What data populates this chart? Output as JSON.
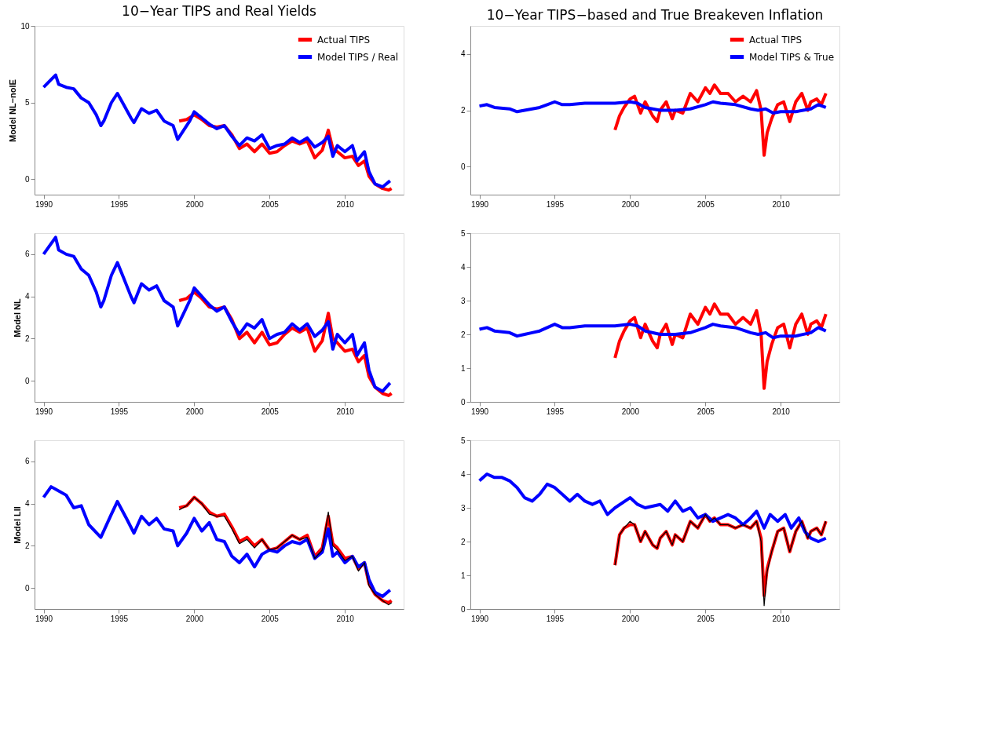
{
  "chart_data": [
    {
      "type": "line",
      "title": "10−Year TIPS and Real Yields",
      "ylabel": "Model NL−noIE",
      "xlim": [
        1989.4,
        2013.9
      ],
      "xticks": [
        1990,
        1995,
        2000,
        2005,
        2010
      ],
      "ylim": [
        -1,
        10
      ],
      "yticks": [
        0,
        5,
        10
      ],
      "grid": false,
      "legend": "top right",
      "series": [
        {
          "name": "Actual TIPS",
          "color": "#ff0000",
          "x": [
            1999,
            1999.5,
            2000,
            2000.5,
            2001,
            2001.5,
            2002,
            2002.5,
            2003,
            2003.5,
            2004,
            2004.5,
            2005,
            2005.5,
            2006,
            2006.5,
            2007,
            2007.5,
            2008,
            2008.5,
            2008.9,
            2009.2,
            2009.5,
            2010,
            2010.5,
            2010.9,
            2011.3,
            2011.6,
            2012,
            2012.5,
            2012.9,
            2013.1
          ],
          "values": [
            3.8,
            3.9,
            4.2,
            3.9,
            3.5,
            3.4,
            3.5,
            2.9,
            2.0,
            2.3,
            1.8,
            2.3,
            1.7,
            1.8,
            2.2,
            2.5,
            2.3,
            2.5,
            1.4,
            1.9,
            3.2,
            2.0,
            1.8,
            1.4,
            1.5,
            0.9,
            1.2,
            0.2,
            -0.3,
            -0.6,
            -0.7,
            -0.6
          ]
        },
        {
          "name": "Model TIPS / Real",
          "color": "#0000ff",
          "x": [
            1990,
            1990.5,
            1990.8,
            1991,
            1991.5,
            1992,
            1992.5,
            1993,
            1993.5,
            1993.8,
            1994,
            1994.5,
            1994.9,
            1995.3,
            1995.8,
            1996,
            1996.5,
            1997,
            1997.5,
            1998,
            1998.6,
            1998.9,
            1999.3,
            1999.7,
            2000,
            2000.5,
            2001,
            2001.5,
            2002,
            2002.5,
            2003,
            2003.5,
            2004,
            2004.5,
            2005,
            2005.5,
            2006,
            2006.5,
            2007,
            2007.5,
            2008,
            2008.5,
            2008.9,
            2009.2,
            2009.5,
            2010,
            2010.5,
            2010.8,
            2011.3,
            2011.6,
            2012,
            2012.5,
            2013
          ],
          "values": [
            6.0,
            6.5,
            6.8,
            6.2,
            6.0,
            5.9,
            5.3,
            5.0,
            4.2,
            3.5,
            3.8,
            5.0,
            5.6,
            4.9,
            4.0,
            3.7,
            4.6,
            4.3,
            4.5,
            3.8,
            3.5,
            2.6,
            3.2,
            3.8,
            4.4,
            4.0,
            3.6,
            3.3,
            3.5,
            2.8,
            2.2,
            2.7,
            2.5,
            2.9,
            2.0,
            2.2,
            2.3,
            2.7,
            2.4,
            2.7,
            2.1,
            2.4,
            2.8,
            1.5,
            2.2,
            1.8,
            2.2,
            1.2,
            1.8,
            0.5,
            -0.3,
            -0.5,
            -0.1
          ]
        }
      ]
    },
    {
      "type": "line",
      "title": "10−Year TIPS−based and True Breakeven Inflation",
      "xlim": [
        1989.4,
        2013.9
      ],
      "xticks": [
        1990,
        1995,
        2000,
        2005,
        2010
      ],
      "ylim": [
        -1,
        5
      ],
      "yticks": [
        0,
        2,
        4
      ],
      "grid": false,
      "legend": "top right",
      "series": [
        {
          "name": "Actual TIPS",
          "color": "#ff0000",
          "x": [
            1999,
            1999.3,
            1999.6,
            2000,
            2000.3,
            2000.7,
            2001,
            2001.5,
            2001.8,
            2002,
            2002.4,
            2002.8,
            2003,
            2003.5,
            2004,
            2004.5,
            2005,
            2005.3,
            2005.6,
            2006,
            2006.5,
            2007,
            2007.5,
            2008,
            2008.4,
            2008.7,
            2008.9,
            2009.1,
            2009.4,
            2009.8,
            2010.2,
            2010.6,
            2011,
            2011.4,
            2011.8,
            2012,
            2012.4,
            2012.7,
            2013
          ],
          "values": [
            1.3,
            1.8,
            2.1,
            2.4,
            2.5,
            1.9,
            2.3,
            1.8,
            1.6,
            2.0,
            2.3,
            1.7,
            2.0,
            1.9,
            2.6,
            2.3,
            2.8,
            2.6,
            2.9,
            2.6,
            2.6,
            2.3,
            2.5,
            2.3,
            2.7,
            2.0,
            0.4,
            1.2,
            1.7,
            2.2,
            2.3,
            1.6,
            2.3,
            2.6,
            2.0,
            2.3,
            2.4,
            2.2,
            2.6
          ]
        },
        {
          "name": "Model TIPS & True",
          "color": "#0000ff",
          "x": [
            1990,
            1990.5,
            1991,
            1992,
            1992.5,
            1993,
            1993.5,
            1994,
            1994.5,
            1995,
            1995.5,
            1996,
            1997,
            1998,
            1999,
            2000,
            2000.5,
            2001,
            2002,
            2003,
            2004,
            2005,
            2005.5,
            2006,
            2007,
            2008,
            2008.5,
            2009,
            2009.5,
            2010,
            2011,
            2012,
            2012.5,
            2013
          ],
          "values": [
            2.15,
            2.2,
            2.1,
            2.05,
            1.95,
            2.0,
            2.05,
            2.1,
            2.2,
            2.3,
            2.2,
            2.2,
            2.25,
            2.25,
            2.25,
            2.3,
            2.25,
            2.1,
            2.0,
            2.0,
            2.05,
            2.2,
            2.3,
            2.25,
            2.2,
            2.05,
            2.0,
            2.05,
            1.9,
            1.95,
            1.95,
            2.05,
            2.2,
            2.1
          ]
        }
      ]
    },
    {
      "type": "line",
      "ylabel": "Model NL",
      "xlim": [
        1989.4,
        2013.9
      ],
      "xticks": [
        1990,
        1995,
        2000,
        2005,
        2010
      ],
      "ylim": [
        -1,
        7
      ],
      "yticks": [
        0,
        2,
        4,
        6
      ],
      "grid": false,
      "series": [
        {
          "color": "#ff0000",
          "x": [
            1999,
            1999.5,
            2000,
            2000.5,
            2001,
            2001.5,
            2002,
            2002.5,
            2003,
            2003.5,
            2004,
            2004.5,
            2005,
            2005.5,
            2006,
            2006.5,
            2007,
            2007.5,
            2008,
            2008.5,
            2008.9,
            2009.2,
            2009.5,
            2010,
            2010.5,
            2010.9,
            2011.3,
            2011.6,
            2012,
            2012.5,
            2012.9,
            2013.1
          ],
          "values": [
            3.8,
            3.9,
            4.2,
            3.9,
            3.5,
            3.4,
            3.5,
            2.9,
            2.0,
            2.3,
            1.8,
            2.3,
            1.7,
            1.8,
            2.2,
            2.5,
            2.3,
            2.5,
            1.4,
            1.9,
            3.2,
            2.0,
            1.8,
            1.4,
            1.5,
            0.9,
            1.2,
            0.2,
            -0.3,
            -0.6,
            -0.7,
            -0.6
          ]
        },
        {
          "color": "#0000ff",
          "x": [
            1990,
            1990.5,
            1990.8,
            1991,
            1991.5,
            1992,
            1992.5,
            1993,
            1993.5,
            1993.8,
            1994,
            1994.5,
            1994.9,
            1995.3,
            1995.8,
            1996,
            1996.5,
            1997,
            1997.5,
            1998,
            1998.6,
            1998.9,
            1999.3,
            1999.7,
            2000,
            2000.5,
            2001,
            2001.5,
            2002,
            2002.5,
            2003,
            2003.5,
            2004,
            2004.5,
            2005,
            2005.5,
            2006,
            2006.5,
            2007,
            2007.5,
            2008,
            2008.5,
            2008.9,
            2009.2,
            2009.5,
            2010,
            2010.5,
            2010.8,
            2011.3,
            2011.6,
            2012,
            2012.5,
            2013
          ],
          "values": [
            6.0,
            6.5,
            6.8,
            6.2,
            6.0,
            5.9,
            5.3,
            5.0,
            4.2,
            3.5,
            3.8,
            5.0,
            5.6,
            4.9,
            4.0,
            3.7,
            4.6,
            4.3,
            4.5,
            3.8,
            3.5,
            2.6,
            3.2,
            3.8,
            4.4,
            4.0,
            3.6,
            3.3,
            3.5,
            2.8,
            2.2,
            2.7,
            2.5,
            2.9,
            2.0,
            2.2,
            2.3,
            2.7,
            2.4,
            2.7,
            2.1,
            2.4,
            2.8,
            1.5,
            2.2,
            1.8,
            2.2,
            1.2,
            1.8,
            0.5,
            -0.3,
            -0.5,
            -0.1
          ]
        }
      ]
    },
    {
      "type": "line",
      "xlim": [
        1989.4,
        2013.9
      ],
      "xticks": [
        1990,
        1995,
        2000,
        2005,
        2010
      ],
      "ylim": [
        0,
        5
      ],
      "yticks": [
        0,
        1,
        2,
        3,
        4,
        5
      ],
      "grid": false,
      "series": [
        {
          "color": "#ff0000",
          "x": [
            1999,
            1999.3,
            1999.6,
            2000,
            2000.3,
            2000.7,
            2001,
            2001.5,
            2001.8,
            2002,
            2002.4,
            2002.8,
            2003,
            2003.5,
            2004,
            2004.5,
            2005,
            2005.3,
            2005.6,
            2006,
            2006.5,
            2007,
            2007.5,
            2008,
            2008.4,
            2008.7,
            2008.9,
            2009.1,
            2009.4,
            2009.8,
            2010.2,
            2010.6,
            2011,
            2011.4,
            2011.8,
            2012,
            2012.4,
            2012.7,
            2013
          ],
          "values": [
            1.3,
            1.8,
            2.1,
            2.4,
            2.5,
            1.9,
            2.3,
            1.8,
            1.6,
            2.0,
            2.3,
            1.7,
            2.0,
            1.9,
            2.6,
            2.3,
            2.8,
            2.6,
            2.9,
            2.6,
            2.6,
            2.3,
            2.5,
            2.3,
            2.7,
            2.0,
            0.4,
            1.2,
            1.7,
            2.2,
            2.3,
            1.6,
            2.3,
            2.6,
            2.0,
            2.3,
            2.4,
            2.2,
            2.6
          ]
        },
        {
          "color": "#0000ff",
          "x": [
            1990,
            1990.5,
            1991,
            1992,
            1992.5,
            1993,
            1993.5,
            1994,
            1994.5,
            1995,
            1995.5,
            1996,
            1997,
            1998,
            1999,
            2000,
            2000.5,
            2001,
            2002,
            2003,
            2004,
            2005,
            2005.5,
            2006,
            2007,
            2008,
            2008.5,
            2009,
            2009.5,
            2010,
            2011,
            2012,
            2012.5,
            2013
          ],
          "values": [
            2.15,
            2.2,
            2.1,
            2.05,
            1.95,
            2.0,
            2.05,
            2.1,
            2.2,
            2.3,
            2.2,
            2.2,
            2.25,
            2.25,
            2.25,
            2.3,
            2.25,
            2.1,
            2.0,
            2.0,
            2.05,
            2.2,
            2.3,
            2.25,
            2.2,
            2.05,
            2.0,
            2.05,
            1.9,
            1.95,
            1.95,
            2.05,
            2.2,
            2.1
          ]
        }
      ]
    },
    {
      "type": "line",
      "ylabel": "Model LII",
      "xlim": [
        1989.4,
        2013.9
      ],
      "xticks": [
        1990,
        1995,
        2000,
        2005,
        2010
      ],
      "ylim": [
        -1,
        7
      ],
      "yticks": [
        0,
        2,
        4,
        6
      ],
      "grid": false,
      "series": [
        {
          "color": "#ff0000",
          "x": [
            1999,
            1999.5,
            2000,
            2000.5,
            2001,
            2001.5,
            2002,
            2002.5,
            2003,
            2003.5,
            2004,
            2004.5,
            2005,
            2005.5,
            2006,
            2006.5,
            2007,
            2007.5,
            2008,
            2008.5,
            2008.9,
            2009.2,
            2009.5,
            2010,
            2010.5,
            2010.9,
            2011.3,
            2011.6,
            2012,
            2012.5,
            2012.9,
            2013.1
          ],
          "values": [
            3.8,
            3.9,
            4.3,
            4.0,
            3.6,
            3.4,
            3.5,
            2.9,
            2.2,
            2.4,
            2.0,
            2.3,
            1.8,
            1.9,
            2.2,
            2.5,
            2.3,
            2.5,
            1.5,
            1.9,
            3.4,
            2.1,
            1.9,
            1.4,
            1.5,
            0.9,
            1.2,
            0.2,
            -0.3,
            -0.6,
            -0.7,
            -0.6
          ]
        },
        {
          "color": "#0000ff",
          "x": [
            1990,
            1990.5,
            1991,
            1991.5,
            1992,
            1992.5,
            1993,
            1993.8,
            1994.5,
            1994.9,
            1995.5,
            1996,
            1996.5,
            1997,
            1997.5,
            1998,
            1998.6,
            1998.9,
            1999.5,
            2000,
            2000.5,
            2001,
            2001.5,
            2002,
            2002.5,
            2003,
            2003.5,
            2004,
            2004.5,
            2005,
            2005.5,
            2006,
            2006.5,
            2007,
            2007.5,
            2008,
            2008.5,
            2008.9,
            2009.2,
            2009.5,
            2010,
            2010.5,
            2010.9,
            2011.3,
            2011.6,
            2012,
            2012.5,
            2013
          ],
          "values": [
            4.3,
            4.8,
            4.6,
            4.4,
            3.8,
            3.9,
            3.0,
            2.4,
            3.5,
            4.1,
            3.3,
            2.6,
            3.4,
            3.0,
            3.3,
            2.8,
            2.7,
            2.0,
            2.6,
            3.3,
            2.7,
            3.1,
            2.3,
            2.2,
            1.5,
            1.2,
            1.6,
            1.0,
            1.6,
            1.8,
            1.7,
            2.0,
            2.2,
            2.1,
            2.3,
            1.4,
            1.7,
            2.8,
            1.5,
            1.7,
            1.2,
            1.5,
            1.0,
            1.2,
            0.4,
            -0.2,
            -0.4,
            -0.1
          ]
        },
        {
          "color": "#000000",
          "x": [
            1999,
            1999.5,
            2000,
            2000.5,
            2001,
            2001.5,
            2002,
            2002.5,
            2003,
            2003.5,
            2004,
            2004.5,
            2005,
            2005.5,
            2006,
            2006.5,
            2007,
            2007.5,
            2008,
            2008.5,
            2008.9,
            2009.2,
            2009.5,
            2010,
            2010.5,
            2010.9,
            2011.3,
            2011.6,
            2012,
            2012.5,
            2012.9,
            2013.1
          ],
          "values": [
            3.7,
            3.9,
            4.3,
            4.0,
            3.5,
            3.4,
            3.4,
            2.8,
            2.1,
            2.3,
            1.9,
            2.3,
            1.8,
            1.9,
            2.2,
            2.5,
            2.3,
            2.4,
            1.4,
            1.8,
            3.6,
            2.0,
            1.8,
            1.3,
            1.5,
            0.8,
            1.2,
            0.1,
            -0.3,
            -0.6,
            -0.8,
            -0.7
          ]
        }
      ]
    },
    {
      "type": "line",
      "xlim": [
        1989.4,
        2013.9
      ],
      "xticks": [
        1990,
        1995,
        2000,
        2005,
        2010
      ],
      "ylim": [
        0,
        5
      ],
      "yticks": [
        0,
        1,
        2,
        3,
        4,
        5
      ],
      "grid": false,
      "series": [
        {
          "color": "#ff0000",
          "x": [
            1999,
            1999.3,
            1999.6,
            2000,
            2000.3,
            2000.7,
            2001,
            2001.5,
            2001.8,
            2002,
            2002.4,
            2002.8,
            2003,
            2003.5,
            2004,
            2004.5,
            2005,
            2005.3,
            2005.6,
            2006,
            2006.5,
            2007,
            2007.5,
            2008,
            2008.4,
            2008.7,
            2008.9,
            2009.1,
            2009.4,
            2009.8,
            2010.2,
            2010.6,
            2011,
            2011.4,
            2011.8,
            2012,
            2012.4,
            2012.7,
            2013
          ],
          "values": [
            1.3,
            2.2,
            2.4,
            2.5,
            2.5,
            2.0,
            2.3,
            1.9,
            1.8,
            2.1,
            2.3,
            1.9,
            2.2,
            2.0,
            2.6,
            2.4,
            2.8,
            2.6,
            2.7,
            2.5,
            2.5,
            2.4,
            2.5,
            2.4,
            2.6,
            2.1,
            0.4,
            1.2,
            1.7,
            2.3,
            2.4,
            1.7,
            2.3,
            2.6,
            2.1,
            2.3,
            2.4,
            2.2,
            2.6
          ]
        },
        {
          "color": "#0000ff",
          "x": [
            1990,
            1990.5,
            1991,
            1991.5,
            1992,
            1992.5,
            1993,
            1993.5,
            1994,
            1994.5,
            1995,
            1995.5,
            1996,
            1996.5,
            1997,
            1997.5,
            1998,
            1998.5,
            1999,
            2000,
            2000.5,
            2001,
            2002,
            2002.5,
            2003,
            2003.5,
            2004,
            2004.5,
            2005,
            2005.5,
            2006,
            2006.5,
            2007,
            2007.5,
            2008,
            2008.4,
            2008.9,
            2009.3,
            2009.8,
            2010.3,
            2010.7,
            2011.2,
            2011.6,
            2012,
            2012.5,
            2013
          ],
          "values": [
            3.8,
            4.0,
            3.9,
            3.9,
            3.8,
            3.6,
            3.3,
            3.2,
            3.4,
            3.7,
            3.6,
            3.4,
            3.2,
            3.4,
            3.2,
            3.1,
            3.2,
            2.8,
            3.0,
            3.3,
            3.1,
            3.0,
            3.1,
            2.9,
            3.2,
            2.9,
            3.0,
            2.7,
            2.8,
            2.6,
            2.7,
            2.8,
            2.7,
            2.5,
            2.7,
            2.9,
            2.4,
            2.8,
            2.6,
            2.8,
            2.4,
            2.7,
            2.3,
            2.1,
            2.0,
            2.1
          ]
        },
        {
          "color": "#000000",
          "x": [
            1999,
            1999.3,
            1999.6,
            2000,
            2000.3,
            2000.7,
            2001,
            2001.5,
            2001.8,
            2002,
            2002.4,
            2002.8,
            2003,
            2003.5,
            2004,
            2004.5,
            2005,
            2005.3,
            2005.6,
            2006,
            2006.5,
            2007,
            2007.5,
            2008,
            2008.4,
            2008.7,
            2008.9,
            2009.1,
            2009.4,
            2009.8,
            2010.2,
            2010.6,
            2011,
            2011.4,
            2011.8,
            2012,
            2012.4,
            2012.7,
            2013
          ],
          "values": [
            1.3,
            2.2,
            2.4,
            2.6,
            2.5,
            2.0,
            2.3,
            1.9,
            1.8,
            2.1,
            2.3,
            1.9,
            2.2,
            2.0,
            2.6,
            2.4,
            2.8,
            2.6,
            2.7,
            2.5,
            2.5,
            2.4,
            2.5,
            2.4,
            2.6,
            2.0,
            0.1,
            1.1,
            1.7,
            2.3,
            2.4,
            1.7,
            2.3,
            2.6,
            2.1,
            2.3,
            2.4,
            2.2,
            2.6
          ]
        }
      ]
    }
  ]
}
